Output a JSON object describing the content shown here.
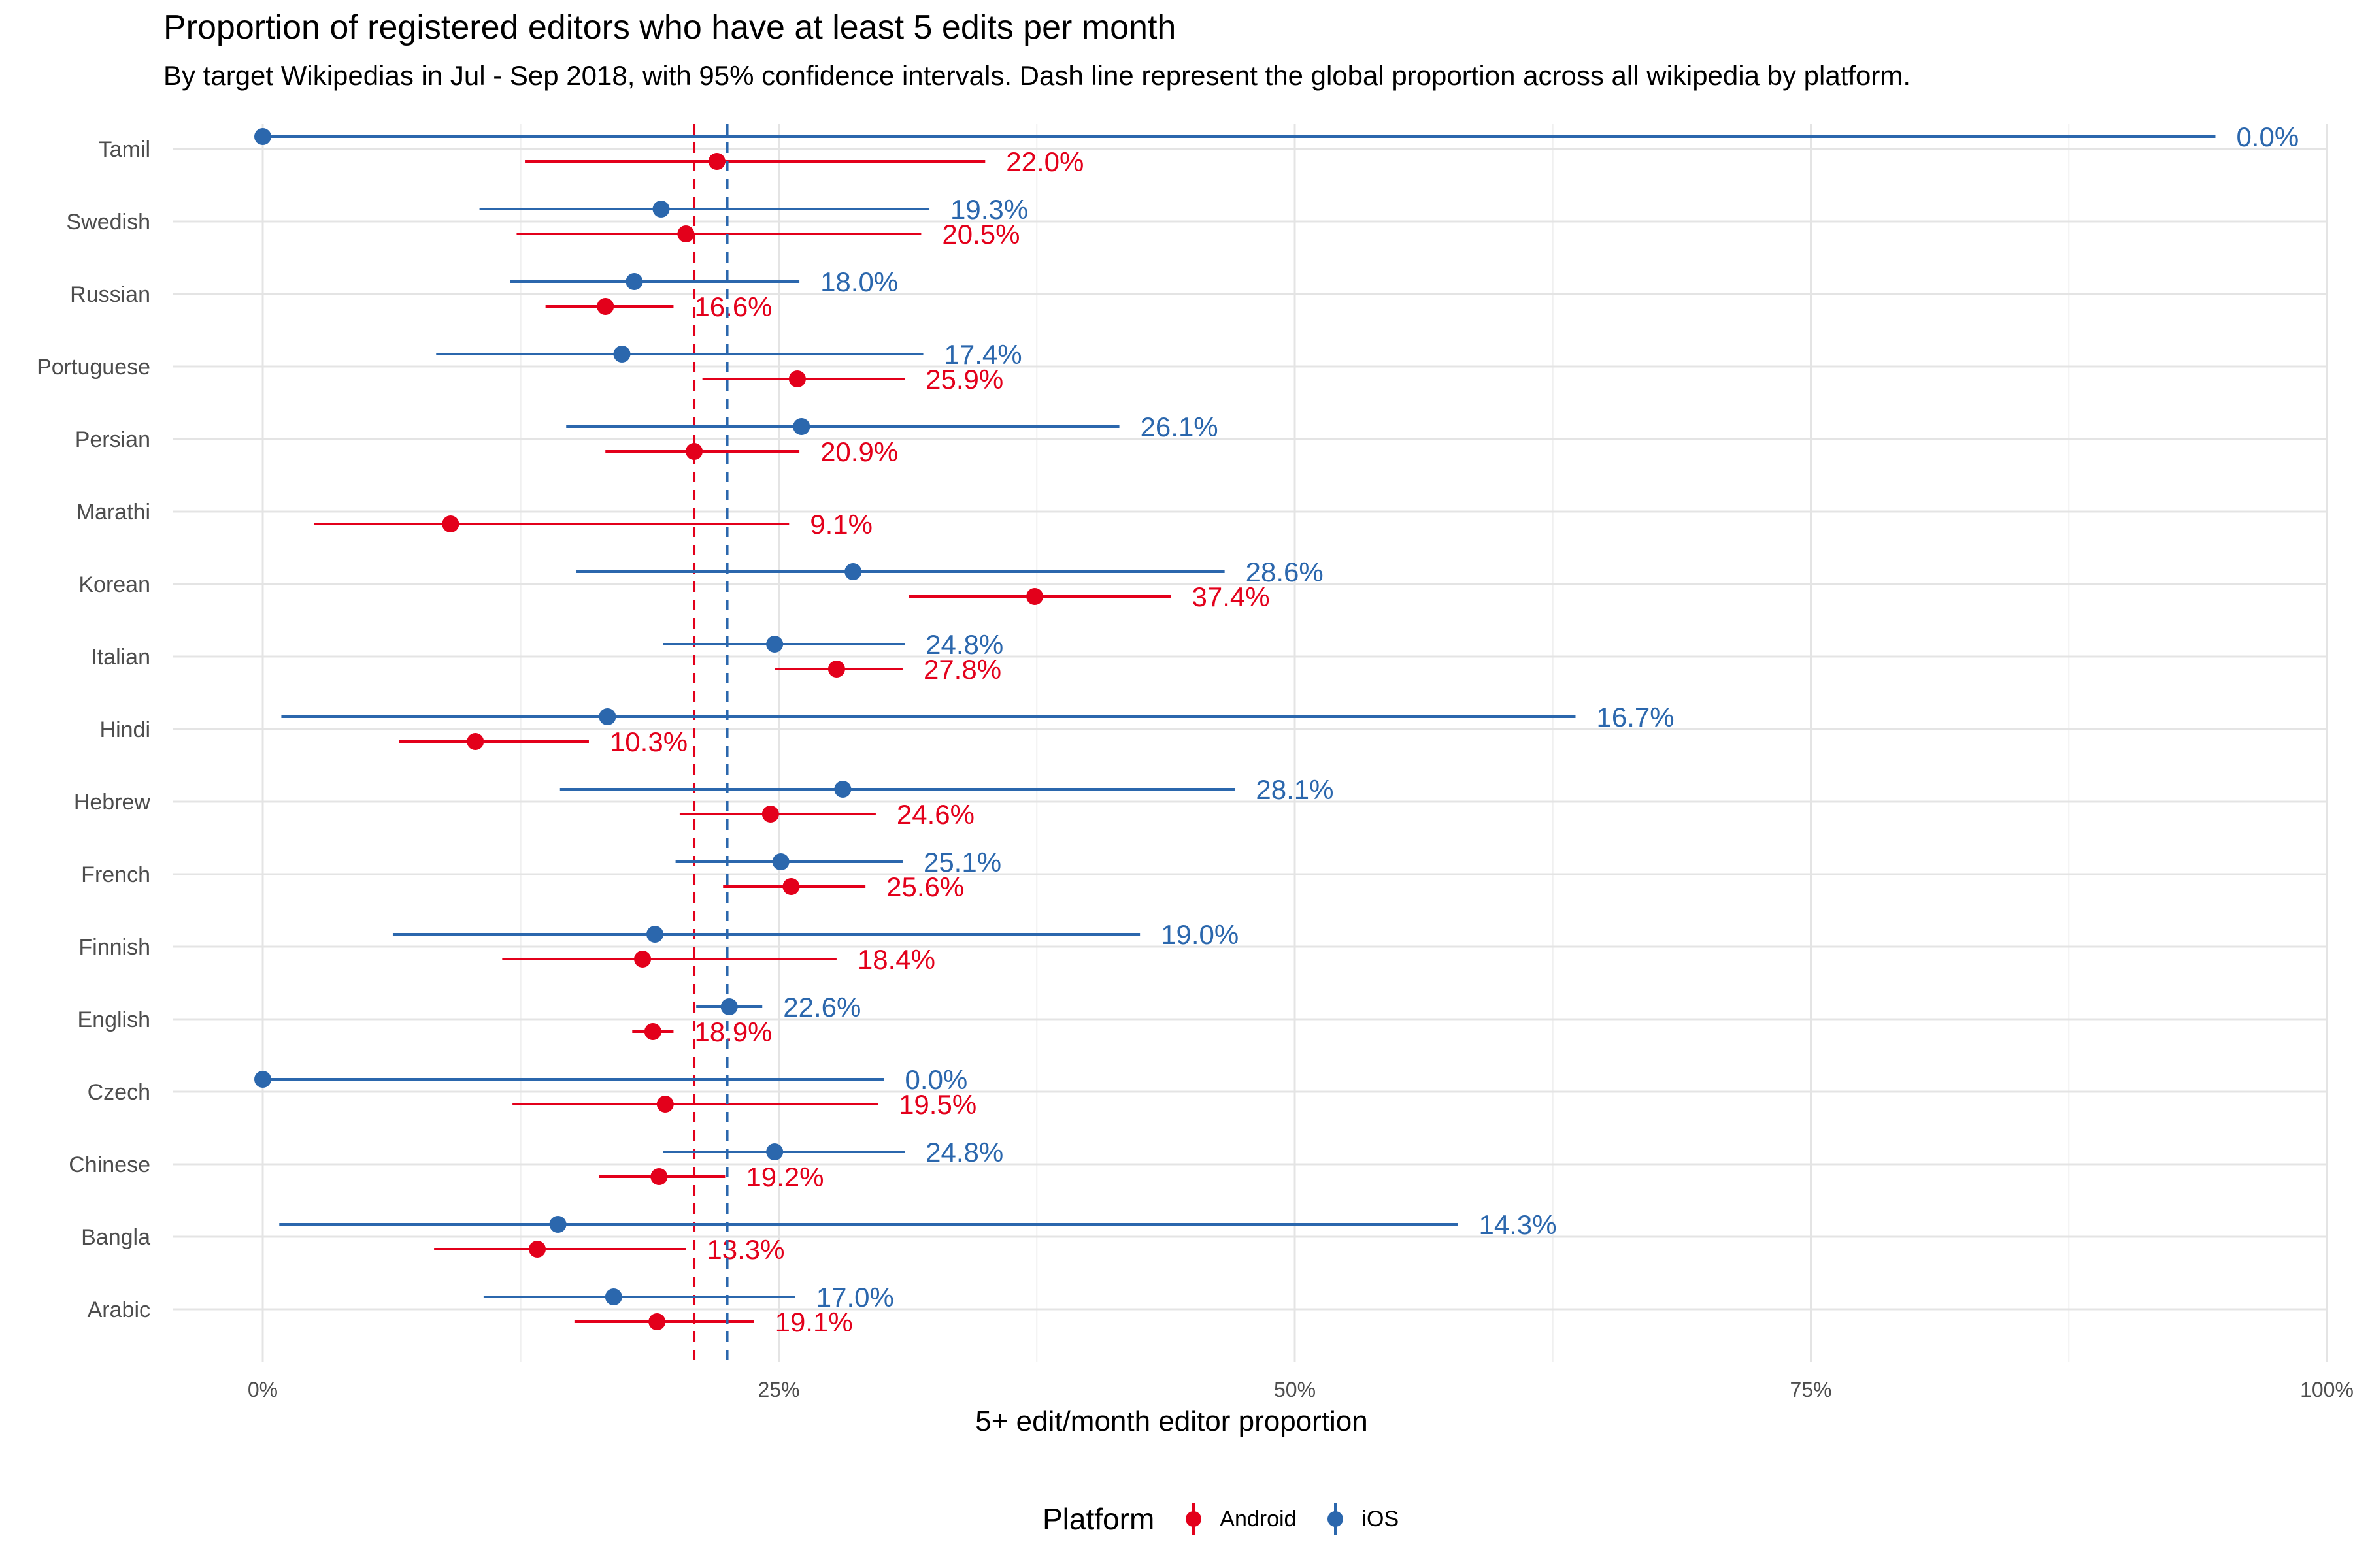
{
  "chart_data": {
    "type": "scatter",
    "title": "Proportion of registered editors who have at least 5 edits per month",
    "subtitle": "By target Wikipedias in Jul - Sep 2018, with 95% confidence intervals. Dash line represent the global proportion across all wikipedia by platform.",
    "xlabel": "5+ edit/month editor proportion",
    "ylabel": "",
    "xlim": [
      0,
      1
    ],
    "x_ticks": [
      {
        "value": 0,
        "label": "0%"
      },
      {
        "value": 0.25,
        "label": "25%"
      },
      {
        "value": 0.5,
        "label": "50%"
      },
      {
        "value": 0.75,
        "label": "75%"
      },
      {
        "value": 1,
        "label": "100%"
      }
    ],
    "grid": true,
    "legend_title": "Platform",
    "legend_position": "bottom",
    "categories": [
      "Tamil",
      "Swedish",
      "Russian",
      "Portuguese",
      "Persian",
      "Marathi",
      "Korean",
      "Italian",
      "Hindi",
      "Hebrew",
      "French",
      "Finnish",
      "English",
      "Czech",
      "Chinese",
      "Bangla",
      "Arabic"
    ],
    "series": [
      {
        "name": "Android",
        "color": "#e3001b",
        "reference_line": 0.209,
        "points": [
          {
            "category": "Tamil",
            "value": 0.22,
            "lower": 0.127,
            "upper": 0.35,
            "label": "22.0%"
          },
          {
            "category": "Swedish",
            "value": 0.205,
            "lower": 0.123,
            "upper": 0.319,
            "label": "20.5%"
          },
          {
            "category": "Russian",
            "value": 0.166,
            "lower": 0.137,
            "upper": 0.199,
            "label": "16.6%"
          },
          {
            "category": "Portuguese",
            "value": 0.259,
            "lower": 0.213,
            "upper": 0.311,
            "label": "25.9%"
          },
          {
            "category": "Persian",
            "value": 0.209,
            "lower": 0.166,
            "upper": 0.26,
            "label": "20.9%"
          },
          {
            "category": "Marathi",
            "value": 0.091,
            "lower": 0.025,
            "upper": 0.255,
            "label": "9.1%"
          },
          {
            "category": "Korean",
            "value": 0.374,
            "lower": 0.313,
            "upper": 0.44,
            "label": "37.4%"
          },
          {
            "category": "Italian",
            "value": 0.278,
            "lower": 0.248,
            "upper": 0.31,
            "label": "27.8%"
          },
          {
            "category": "Hindi",
            "value": 0.103,
            "lower": 0.066,
            "upper": 0.158,
            "label": "10.3%"
          },
          {
            "category": "Hebrew",
            "value": 0.246,
            "lower": 0.202,
            "upper": 0.297,
            "label": "24.6%"
          },
          {
            "category": "French",
            "value": 0.256,
            "lower": 0.223,
            "upper": 0.292,
            "label": "25.6%"
          },
          {
            "category": "Finnish",
            "value": 0.184,
            "lower": 0.116,
            "upper": 0.278,
            "label": "18.4%"
          },
          {
            "category": "English",
            "value": 0.189,
            "lower": 0.179,
            "upper": 0.199,
            "label": "18.9%"
          },
          {
            "category": "Czech",
            "value": 0.195,
            "lower": 0.121,
            "upper": 0.298,
            "label": "19.5%"
          },
          {
            "category": "Chinese",
            "value": 0.192,
            "lower": 0.163,
            "upper": 0.224,
            "label": "19.2%"
          },
          {
            "category": "Bangla",
            "value": 0.133,
            "lower": 0.083,
            "upper": 0.205,
            "label": "13.3%"
          },
          {
            "category": "Arabic",
            "value": 0.191,
            "lower": 0.151,
            "upper": 0.238,
            "label": "19.1%"
          }
        ]
      },
      {
        "name": "iOS",
        "color": "#2b67ad",
        "reference_line": 0.225,
        "points": [
          {
            "category": "Tamil",
            "value": 0.0,
            "lower": 0.0,
            "upper": 0.946,
            "label": "0.0%"
          },
          {
            "category": "Swedish",
            "value": 0.193,
            "lower": 0.105,
            "upper": 0.323,
            "label": "19.3%"
          },
          {
            "category": "Russian",
            "value": 0.18,
            "lower": 0.12,
            "upper": 0.26,
            "label": "18.0%"
          },
          {
            "category": "Portuguese",
            "value": 0.174,
            "lower": 0.084,
            "upper": 0.32,
            "label": "17.4%"
          },
          {
            "category": "Persian",
            "value": 0.261,
            "lower": 0.147,
            "upper": 0.415,
            "label": "26.1%"
          },
          {
            "category": "Korean",
            "value": 0.286,
            "lower": 0.152,
            "upper": 0.466,
            "label": "28.6%"
          },
          {
            "category": "Italian",
            "value": 0.248,
            "lower": 0.194,
            "upper": 0.311,
            "label": "24.8%"
          },
          {
            "category": "Hindi",
            "value": 0.167,
            "lower": 0.009,
            "upper": 0.636,
            "label": "16.7%"
          },
          {
            "category": "Hebrew",
            "value": 0.281,
            "lower": 0.144,
            "upper": 0.471,
            "label": "28.1%"
          },
          {
            "category": "French",
            "value": 0.251,
            "lower": 0.2,
            "upper": 0.31,
            "label": "25.1%"
          },
          {
            "category": "Finnish",
            "value": 0.19,
            "lower": 0.063,
            "upper": 0.425,
            "label": "19.0%"
          },
          {
            "category": "English",
            "value": 0.226,
            "lower": 0.21,
            "upper": 0.242,
            "label": "22.6%"
          },
          {
            "category": "Czech",
            "value": 0.0,
            "lower": 0.0,
            "upper": 0.301,
            "label": "0.0%"
          },
          {
            "category": "Chinese",
            "value": 0.248,
            "lower": 0.194,
            "upper": 0.311,
            "label": "24.8%"
          },
          {
            "category": "Bangla",
            "value": 0.143,
            "lower": 0.008,
            "upper": 0.579,
            "label": "14.3%"
          },
          {
            "category": "Arabic",
            "value": 0.17,
            "lower": 0.107,
            "upper": 0.258,
            "label": "17.0%"
          }
        ]
      }
    ]
  }
}
